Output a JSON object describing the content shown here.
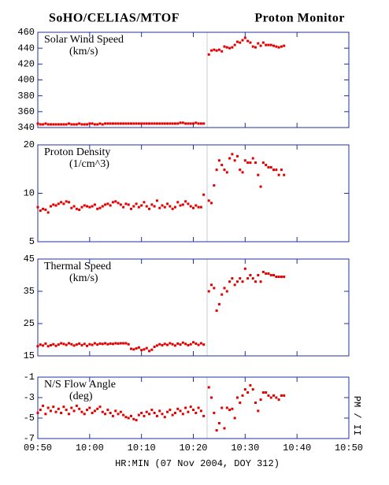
{
  "chart_data": [
    {
      "type": "scatter",
      "title": "SoHO/CELIAS/MTOF",
      "subtitle": "Proton Monitor",
      "label": "Solar Wind Speed",
      "units": "(km/s)",
      "x": [
        0,
        0.5,
        1,
        1.5,
        2,
        2.5,
        3,
        3.5,
        4,
        4.5,
        5,
        5.5,
        6,
        6.5,
        7,
        7.5,
        8,
        8.5,
        9,
        9.5,
        10,
        10.5,
        11,
        11.5,
        12,
        12.5,
        13,
        13.5,
        14,
        14.5,
        15,
        15.5,
        16,
        16.5,
        17,
        17.5,
        18,
        18.5,
        19,
        19.5,
        20,
        20.5,
        21,
        21.5,
        22,
        22.5,
        23,
        23.5,
        24,
        24.5,
        25,
        25.5,
        26,
        26.5,
        27,
        27.5,
        28,
        28.5,
        29,
        29.5,
        30,
        30.5,
        31,
        31.5,
        32,
        33,
        33.5,
        34,
        34.5,
        35,
        35.5,
        36,
        36.5,
        37,
        37.5,
        38,
        38.5,
        39,
        39.5,
        40,
        40.5,
        41,
        41.5,
        42,
        42.5,
        43,
        43.5,
        44,
        44.5,
        45,
        45.5,
        46,
        46.5,
        47,
        47.5
      ],
      "series": [
        {
          "color": "#e00000",
          "values": [
            345,
            344,
            344,
            345,
            344,
            344,
            344,
            344,
            344,
            344,
            344,
            344,
            345,
            344,
            344,
            344,
            345,
            344,
            344,
            344,
            345,
            345,
            344,
            344,
            345,
            344,
            345,
            345,
            345,
            345,
            345,
            345,
            345,
            345,
            345,
            345,
            345,
            345,
            345,
            345,
            345,
            345,
            345,
            345,
            345,
            345,
            345,
            345,
            345,
            345,
            345,
            345,
            345,
            345,
            345,
            346,
            346,
            345,
            345,
            345,
            345,
            346,
            345,
            345,
            345,
            432,
            437,
            438,
            437,
            438,
            436,
            442,
            441,
            440,
            441,
            444,
            448,
            447,
            450,
            453,
            449,
            447,
            442,
            441,
            446,
            443,
            447,
            444,
            444,
            444,
            443,
            442,
            441,
            442,
            443
          ]
        }
      ],
      "xlim": [
        0,
        60
      ],
      "xticks": [
        0,
        10,
        20,
        30,
        40,
        50,
        60
      ],
      "ylim": [
        340,
        460
      ],
      "yticks": [
        340,
        360,
        380,
        400,
        420,
        440,
        460
      ]
    },
    {
      "type": "scatter",
      "label": "Proton Density",
      "units": "(1/cm^3)",
      "log": true,
      "x": [
        0,
        0.5,
        1,
        1.5,
        2,
        2.5,
        3,
        3.5,
        4,
        4.5,
        5,
        5.5,
        6,
        6.5,
        7,
        7.5,
        8,
        8.5,
        9,
        9.5,
        10,
        10.5,
        11,
        11.5,
        12,
        12.5,
        13,
        13.5,
        14,
        14.5,
        15,
        15.5,
        16,
        16.5,
        17,
        17.5,
        18,
        18.5,
        19,
        19.5,
        20,
        20.5,
        21,
        21.5,
        22,
        22.5,
        23,
        23.5,
        24,
        24.5,
        25,
        25.5,
        26,
        26.5,
        27,
        27.5,
        28,
        28.5,
        29,
        29.5,
        30,
        30.5,
        31,
        31.5,
        32,
        33,
        33.5,
        34,
        34.5,
        35,
        35.5,
        36,
        36.5,
        37,
        37.5,
        38,
        38.5,
        39,
        39.5,
        40,
        40.5,
        41,
        41.5,
        42,
        42.5,
        43,
        43.5,
        44,
        44.5,
        45,
        45.5,
        46,
        46.5,
        47,
        47.5
      ],
      "series": [
        {
          "color": "#e00000",
          "values": [
            8.2,
            7.8,
            8.0,
            7.9,
            7.6,
            8.3,
            8.5,
            8.4,
            8.6,
            8.8,
            8.6,
            8.9,
            8.8,
            8.1,
            8.3,
            8.0,
            7.9,
            8.2,
            8.4,
            8.3,
            8.2,
            8.3,
            8.5,
            8.0,
            8.1,
            8.3,
            8.5,
            8.6,
            8.4,
            8.8,
            8.9,
            8.7,
            8.5,
            8.2,
            8.6,
            8.5,
            8.0,
            8.3,
            8.6,
            8.2,
            8.4,
            8.8,
            8.3,
            8.0,
            8.5,
            8.3,
            9.0,
            8.1,
            8.4,
            8.2,
            8.6,
            8.3,
            8.0,
            8.2,
            8.8,
            8.4,
            8.5,
            8.9,
            8.6,
            8.3,
            8.1,
            8.4,
            8.2,
            8.2,
            9.8,
            9.0,
            8.7,
            11.2,
            14.0,
            16.0,
            15.0,
            14.0,
            13.5,
            16.5,
            17.5,
            16.0,
            17.0,
            14.0,
            13.5,
            16.0,
            15.5,
            15.5,
            16.5,
            15.5,
            13.0,
            11.0,
            15.5,
            15.0,
            14.5,
            14.5,
            14.0,
            14.0,
            13.0,
            14.0,
            13.0
          ]
        }
      ],
      "xlim": [
        0,
        60
      ],
      "xticks": [
        0,
        10,
        20,
        30,
        40,
        50,
        60
      ],
      "ylim": [
        5,
        20
      ],
      "yticks": [
        5,
        10,
        20
      ]
    },
    {
      "type": "scatter",
      "label": "Thermal Speed",
      "units": "(km/s)",
      "x": [
        0,
        0.5,
        1,
        1.5,
        2,
        2.5,
        3,
        3.5,
        4,
        4.5,
        5,
        5.5,
        6,
        6.5,
        7,
        7.5,
        8,
        8.5,
        9,
        9.5,
        10,
        10.5,
        11,
        11.5,
        12,
        12.5,
        13,
        13.5,
        14,
        14.5,
        15,
        15.5,
        16,
        16.5,
        17,
        17.5,
        18,
        18.5,
        19,
        19.5,
        20,
        20.5,
        21,
        21.5,
        22,
        22.5,
        23,
        23.5,
        24,
        24.5,
        25,
        25.5,
        26,
        26.5,
        27,
        27.5,
        28,
        28.5,
        29,
        29.5,
        30,
        30.5,
        31,
        31.5,
        32,
        33,
        33.5,
        34,
        34.5,
        35,
        35.5,
        36,
        36.5,
        37,
        37.5,
        38,
        38.5,
        39,
        39.5,
        40,
        40.5,
        41,
        41.5,
        42,
        42.5,
        43,
        43.5,
        44,
        44.5,
        45,
        45.5,
        46,
        46.5,
        47,
        47.5
      ],
      "series": [
        {
          "color": "#e00000",
          "values": [
            18.0,
            18.5,
            18.2,
            18.8,
            18.0,
            18.3,
            18.6,
            18.1,
            18.5,
            18.9,
            18.7,
            18.4,
            18.9,
            18.6,
            18.2,
            18.5,
            18.8,
            18.3,
            18.7,
            18.1,
            18.6,
            18.4,
            18.9,
            18.5,
            18.8,
            18.7,
            18.9,
            18.6,
            18.8,
            18.7,
            18.9,
            18.8,
            18.9,
            18.9,
            18.9,
            18.6,
            17.2,
            17.0,
            17.3,
            17.6,
            16.8,
            17.0,
            17.4,
            16.5,
            16.9,
            17.8,
            18.2,
            18.6,
            18.3,
            18.7,
            18.4,
            18.9,
            18.6,
            18.2,
            18.8,
            18.5,
            19.1,
            18.7,
            18.3,
            18.6,
            19.2,
            18.8,
            18.4,
            18.9,
            18.5,
            35,
            37,
            36,
            29,
            31,
            34,
            36,
            35,
            38,
            39,
            37,
            38,
            39,
            38,
            42,
            39,
            40,
            39,
            38,
            40,
            38,
            41,
            40.5,
            40.5,
            40,
            40,
            39.5,
            39.5,
            39.5,
            39.5
          ]
        }
      ],
      "xlim": [
        0,
        60
      ],
      "xticks": [
        0,
        10,
        20,
        30,
        40,
        50,
        60
      ],
      "ylim": [
        15,
        45
      ],
      "yticks": [
        15,
        25,
        35,
        45
      ]
    },
    {
      "type": "scatter",
      "label": "N/S Flow Angle",
      "units": "(deg)",
      "xlabel": "HR:MIN (07 Nov 2004, DOY 312)",
      "annotation": "PM / II",
      "x": [
        0,
        0.5,
        1,
        1.5,
        2,
        2.5,
        3,
        3.5,
        4,
        4.5,
        5,
        5.5,
        6,
        6.5,
        7,
        7.5,
        8,
        8.5,
        9,
        9.5,
        10,
        10.5,
        11,
        11.5,
        12,
        12.5,
        13,
        13.5,
        14,
        14.5,
        15,
        15.5,
        16,
        16.5,
        17,
        17.5,
        18,
        18.5,
        19,
        19.5,
        20,
        20.5,
        21,
        21.5,
        22,
        22.5,
        23,
        23.5,
        24,
        24.5,
        25,
        25.5,
        26,
        26.5,
        27,
        27.5,
        28,
        28.5,
        29,
        29.5,
        30,
        30.5,
        31,
        31.5,
        32,
        33,
        33.5,
        34,
        34.5,
        35,
        35.5,
        36,
        36.5,
        37,
        37.5,
        38,
        38.5,
        39,
        39.5,
        40,
        40.5,
        41,
        41.5,
        42,
        42.5,
        43,
        43.5,
        44,
        44.5,
        45,
        45.5,
        46,
        46.5,
        47,
        47.5
      ],
      "series": [
        {
          "color": "#e00000",
          "values": [
            -4.5,
            -4.2,
            -3.8,
            -4.6,
            -4.0,
            -4.3,
            -3.9,
            -4.4,
            -4.1,
            -4.5,
            -3.9,
            -4.2,
            -4.6,
            -4.0,
            -4.3,
            -3.8,
            -4.1,
            -4.4,
            -4.6,
            -4.2,
            -4.0,
            -4.5,
            -4.3,
            -4.1,
            -3.9,
            -4.4,
            -4.6,
            -4.2,
            -4.5,
            -4.8,
            -4.3,
            -4.6,
            -4.4,
            -4.7,
            -4.9,
            -5.0,
            -4.8,
            -5.1,
            -5.2,
            -4.7,
            -4.5,
            -4.8,
            -4.4,
            -4.6,
            -4.2,
            -4.5,
            -4.8,
            -4.3,
            -4.6,
            -4.9,
            -4.4,
            -4.2,
            -4.7,
            -4.5,
            -4.1,
            -4.3,
            -4.6,
            -4.0,
            -4.4,
            -3.9,
            -4.2,
            -4.5,
            -4.0,
            -4.3,
            -4.8,
            -2.0,
            -3.0,
            -4.5,
            -6.2,
            -5.5,
            -4.0,
            -6.0,
            -4.0,
            -4.2,
            -4.1,
            -5.0,
            -3.0,
            -3.5,
            -2.8,
            -2.2,
            -2.5,
            -1.8,
            -2.2,
            -3.5,
            -4.3,
            -3.2,
            -2.5,
            -2.5,
            -2.8,
            -3.0,
            -2.8,
            -3.0,
            -3.2,
            -2.8,
            -2.8
          ]
        }
      ],
      "xlim": [
        0,
        60
      ],
      "xticks": [
        {
          "value": 0,
          "label": "09:50"
        },
        {
          "value": 10,
          "label": "10:00"
        },
        {
          "value": 20,
          "label": "10:10"
        },
        {
          "value": 30,
          "label": "10:20"
        },
        {
          "value": 40,
          "label": "10:30"
        },
        {
          "value": 50,
          "label": "10:40"
        },
        {
          "value": 60,
          "label": "10:50"
        }
      ],
      "ylim": [
        -7,
        -1
      ],
      "yticks": [
        -7,
        -5,
        -3,
        -1
      ]
    }
  ]
}
